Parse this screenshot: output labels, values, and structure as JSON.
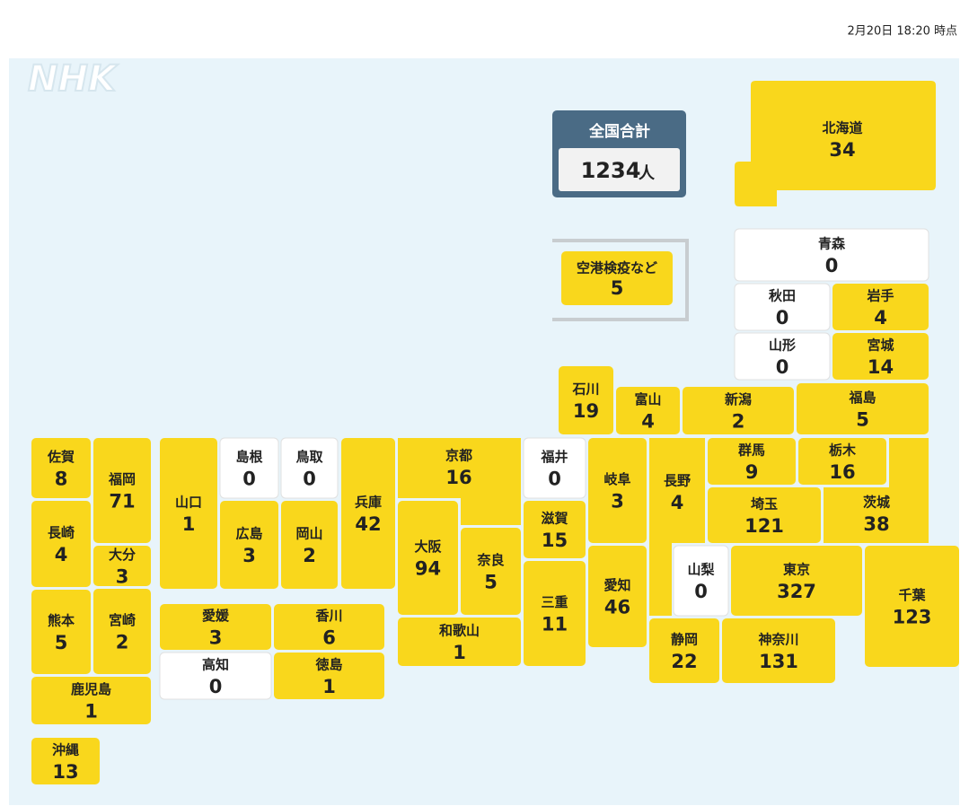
{
  "header": {
    "timestamp": "2月20日 18:20 時点"
  },
  "logo": "NHK",
  "total": {
    "label": "全国合計",
    "value": 1234,
    "unit": "人"
  },
  "other": {
    "name": "空港検疫など",
    "value": 5
  },
  "prefectures": [
    {
      "name": "北海道",
      "value": 34
    },
    {
      "name": "青森",
      "value": 0
    },
    {
      "name": "秋田",
      "value": 0
    },
    {
      "name": "岩手",
      "value": 4
    },
    {
      "name": "山形",
      "value": 0
    },
    {
      "name": "宮城",
      "value": 14
    },
    {
      "name": "福島",
      "value": 5
    },
    {
      "name": "新潟",
      "value": 2
    },
    {
      "name": "富山",
      "value": 4
    },
    {
      "name": "石川",
      "value": 19
    },
    {
      "name": "福井",
      "value": 0
    },
    {
      "name": "岐阜",
      "value": 3
    },
    {
      "name": "長野",
      "value": 4
    },
    {
      "name": "群馬",
      "value": 9
    },
    {
      "name": "栃木",
      "value": 16
    },
    {
      "name": "茨城",
      "value": 38
    },
    {
      "name": "埼玉",
      "value": 121
    },
    {
      "name": "千葉",
      "value": 123
    },
    {
      "name": "東京",
      "value": 327
    },
    {
      "name": "山梨",
      "value": 0
    },
    {
      "name": "神奈川",
      "value": 131
    },
    {
      "name": "静岡",
      "value": 22
    },
    {
      "name": "愛知",
      "value": 46
    },
    {
      "name": "三重",
      "value": 11
    },
    {
      "name": "滋賀",
      "value": 15
    },
    {
      "name": "京都",
      "value": 16
    },
    {
      "name": "大阪",
      "value": 94
    },
    {
      "name": "奈良",
      "value": 5
    },
    {
      "name": "和歌山",
      "value": 1
    },
    {
      "name": "兵庫",
      "value": 42
    },
    {
      "name": "鳥取",
      "value": 0
    },
    {
      "name": "島根",
      "value": 0
    },
    {
      "name": "岡山",
      "value": 2
    },
    {
      "name": "広島",
      "value": 3
    },
    {
      "name": "山口",
      "value": 1
    },
    {
      "name": "愛媛",
      "value": 3
    },
    {
      "name": "香川",
      "value": 6
    },
    {
      "name": "高知",
      "value": 0
    },
    {
      "name": "徳島",
      "value": 1
    },
    {
      "name": "福岡",
      "value": 71
    },
    {
      "name": "佐賀",
      "value": 8
    },
    {
      "name": "長崎",
      "value": 4
    },
    {
      "name": "大分",
      "value": 3
    },
    {
      "name": "熊本",
      "value": 5
    },
    {
      "name": "宮崎",
      "value": 2
    },
    {
      "name": "鹿児島",
      "value": 1
    },
    {
      "name": "沖縄",
      "value": 13
    }
  ]
}
